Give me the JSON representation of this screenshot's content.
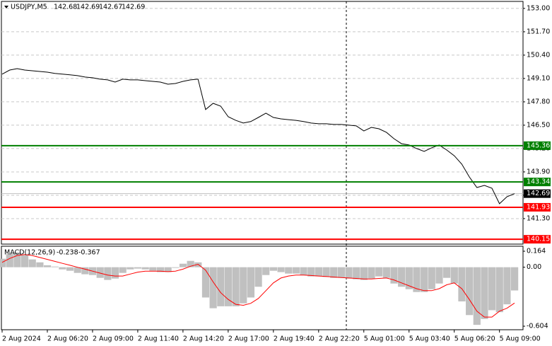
{
  "chart_data": [
    {
      "type": "line",
      "title": "USDJPY,M5",
      "ohlc": [
        142.68,
        142.69,
        142.67,
        142.69
      ],
      "color": "#000000",
      "values": [
        149.34,
        149.57,
        149.65,
        149.57,
        149.53,
        149.49,
        149.45,
        149.38,
        149.34,
        149.3,
        149.26,
        149.18,
        149.14,
        149.06,
        149.02,
        148.9,
        149.06,
        149.02,
        149.02,
        148.98,
        148.94,
        148.9,
        148.78,
        148.82,
        148.94,
        149.02,
        149.06,
        147.37,
        147.72,
        147.56,
        146.97,
        146.77,
        146.62,
        146.7,
        146.93,
        147.17,
        146.93,
        146.85,
        146.81,
        146.77,
        146.7,
        146.62,
        146.58,
        146.58,
        146.54,
        146.54,
        146.5,
        146.46,
        146.18,
        146.38,
        146.3,
        146.1,
        145.75,
        145.47,
        145.4,
        145.2,
        145.04,
        145.24,
        145.4,
        145.12,
        144.8,
        144.33,
        143.62,
        143.03,
        143.15,
        142.99,
        142.13,
        142.52,
        142.69
      ],
      "ylim": [
        139.88,
        153.39
      ],
      "yticks": [
        {
          "value": 153,
          "label": "153.00"
        },
        {
          "value": 151.7,
          "label": "151.70"
        },
        {
          "value": 150.4,
          "label": "150.40"
        },
        {
          "value": 149.1,
          "label": "149.10"
        },
        {
          "value": 147.8,
          "label": "147.80"
        },
        {
          "value": 146.5,
          "label": "146.50"
        },
        {
          "value": 145.2,
          "label": "145.20"
        },
        {
          "value": 143.9,
          "label": "143.90"
        },
        {
          "value": 142.6,
          "label": "142.60"
        },
        {
          "value": 141.3,
          "label": "141.30"
        }
      ],
      "grid": true,
      "levels": [
        {
          "value": 145.36,
          "color": "#008000"
        },
        {
          "value": 143.34,
          "color": "#008000"
        },
        {
          "value": 141.93,
          "color": "#ff0000"
        },
        {
          "value": 140.15,
          "color": "#ff0000"
        }
      ],
      "last_price": {
        "value": 142.69,
        "color": "#000000"
      }
    },
    {
      "type": "macd",
      "title": "MACD(12,26,9)",
      "color": "#c0c0c0",
      "values": [
        0.087,
        0.138,
        0.152,
        0.123,
        0.08,
        0.05,
        0.02,
        0.007,
        -0.022,
        -0.036,
        -0.058,
        -0.072,
        -0.08,
        -0.109,
        -0.13,
        -0.116,
        -0.058,
        -0.022,
        -0.014,
        -0.022,
        -0.036,
        -0.05,
        -0.05,
        -0.007,
        0.036,
        0.065,
        0.05,
        -0.31,
        -0.42,
        -0.4,
        -0.4,
        -0.4,
        -0.37,
        -0.31,
        -0.2,
        -0.08,
        -0.036,
        -0.05,
        -0.065,
        -0.065,
        -0.08,
        -0.094,
        -0.094,
        -0.1,
        -0.109,
        -0.109,
        -0.116,
        -0.123,
        -0.13,
        -0.116,
        -0.094,
        -0.109,
        -0.167,
        -0.2,
        -0.225,
        -0.254,
        -0.254,
        -0.225,
        -0.167,
        -0.109,
        -0.167,
        -0.35,
        -0.49,
        -0.59,
        -0.53,
        -0.44,
        -0.46,
        -0.38,
        -0.238
      ],
      "signal": {
        "color": "#ff0000",
        "values": [
          0.05,
          0.09,
          0.12,
          0.13,
          0.12,
          0.1,
          0.08,
          0.06,
          0.04,
          0.02,
          0,
          -0.02,
          -0.04,
          -0.06,
          -0.08,
          -0.09,
          -0.09,
          -0.07,
          -0.05,
          -0.04,
          -0.04,
          -0.04,
          -0.045,
          -0.04,
          -0.02,
          0.01,
          0.03,
          -0.03,
          -0.15,
          -0.26,
          -0.33,
          -0.38,
          -0.39,
          -0.37,
          -0.32,
          -0.24,
          -0.16,
          -0.11,
          -0.09,
          -0.08,
          -0.08,
          -0.085,
          -0.09,
          -0.095,
          -0.1,
          -0.105,
          -0.11,
          -0.115,
          -0.12,
          -0.12,
          -0.115,
          -0.11,
          -0.13,
          -0.16,
          -0.19,
          -0.22,
          -0.24,
          -0.24,
          -0.22,
          -0.18,
          -0.16,
          -0.22,
          -0.33,
          -0.45,
          -0.51,
          -0.51,
          -0.45,
          -0.42,
          -0.367
        ]
      },
      "ylim": [
        -0.64,
        0.215
      ],
      "yticks": [
        0.164,
        {
          "value": 0,
          "label": "0.00"
        },
        -0.604
      ],
      "categories": [
        "2 Aug 2024",
        null,
        null,
        null,
        null,
        null,
        "2 Aug 06:20",
        null,
        null,
        null,
        null,
        null,
        "2 Aug 09:00",
        null,
        null,
        null,
        null,
        null,
        "2 Aug 11:40",
        null,
        null,
        null,
        null,
        null,
        "2 Aug 14:20",
        null,
        null,
        null,
        null,
        null,
        "2 Aug 17:00",
        null,
        null,
        null,
        null,
        null,
        "2 Aug 19:40",
        null,
        null,
        null,
        null,
        null,
        "2 Aug 22:20",
        null,
        null,
        null,
        null,
        null,
        "5 Aug 01:00",
        null,
        null,
        null,
        null,
        null,
        "5 Aug 03:40",
        null,
        null,
        null,
        null,
        null,
        "5 Aug 06:20",
        null,
        null,
        null,
        null,
        null,
        "5 Aug 09:00",
        null,
        null
      ]
    }
  ]
}
